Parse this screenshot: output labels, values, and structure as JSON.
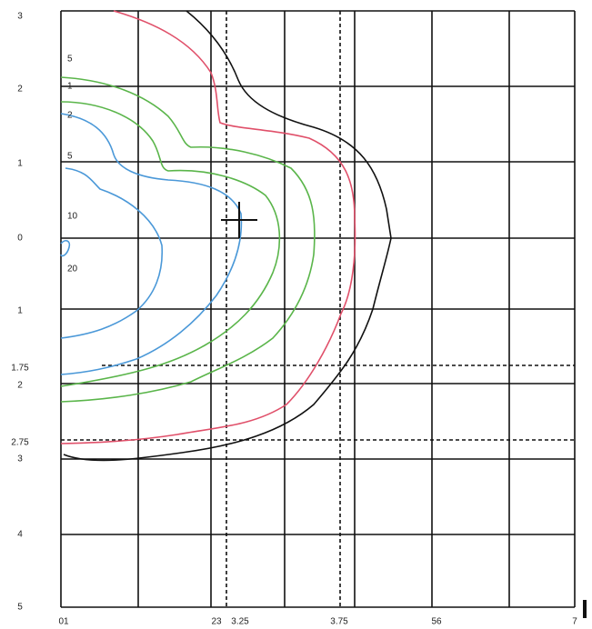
{
  "chart_data": {
    "type": "contour",
    "y_labels": [
      "3",
      "2",
      "1",
      "0",
      "1",
      "1.75",
      "2",
      "2.75",
      "3",
      "4",
      "5"
    ],
    "x_labels": [
      "01",
      "23",
      "3.25",
      "3.75",
      "56",
      "7"
    ],
    "levels": [
      5,
      1,
      2,
      5,
      10,
      20
    ]
  }
}
